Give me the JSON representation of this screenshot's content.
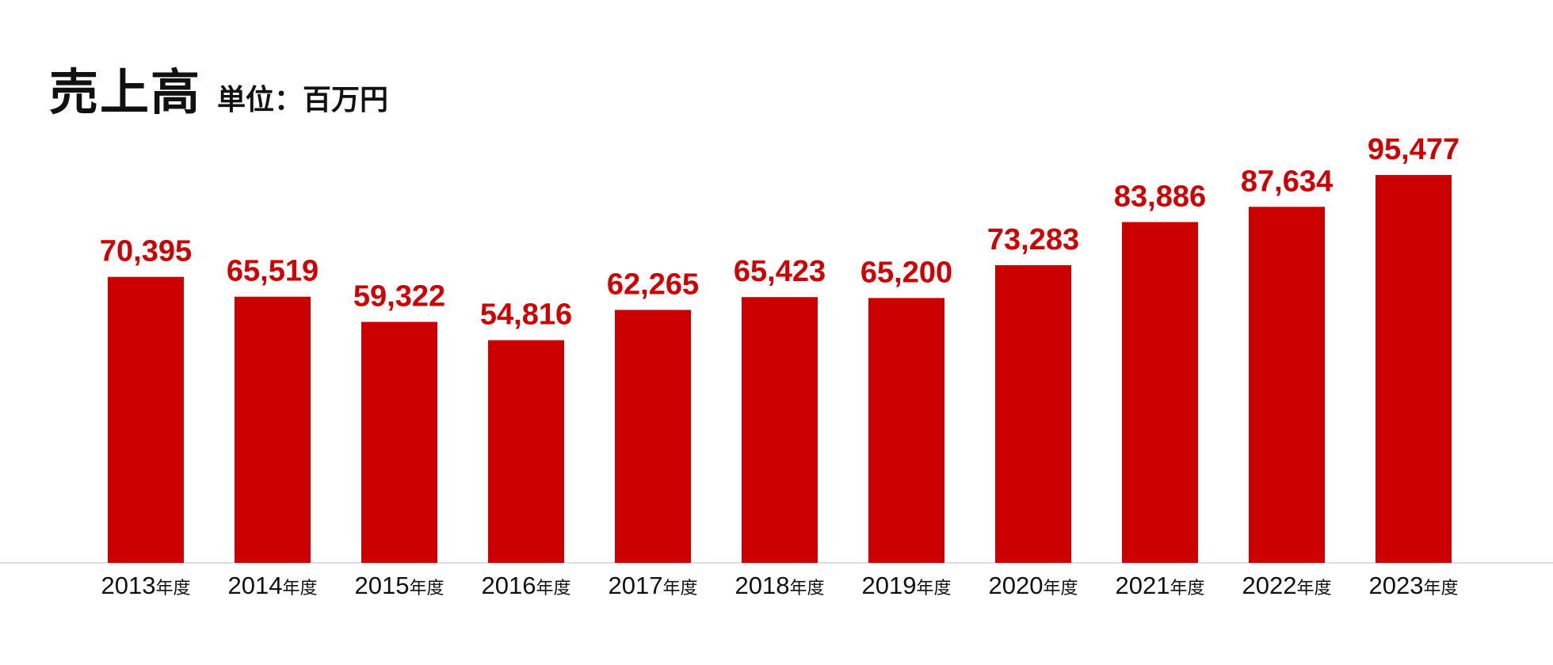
{
  "header": {
    "title": "売上高",
    "unit": "単位：百万円"
  },
  "colors": {
    "bar": "#cc0000",
    "value_label": "#cc0000",
    "axis_label": "#111111"
  },
  "chart_data": {
    "type": "bar",
    "title": "売上高",
    "subtitle": "単位：百万円",
    "category_suffix": "年度",
    "categories": [
      "2013",
      "2014",
      "2015",
      "2016",
      "2017",
      "2018",
      "2019",
      "2020",
      "2021",
      "2022",
      "2023"
    ],
    "values": [
      70395,
      65519,
      59322,
      54816,
      62265,
      65423,
      65200,
      73283,
      83886,
      87634,
      95477
    ],
    "value_labels": [
      "70,395",
      "65,519",
      "59,322",
      "54,816",
      "62,265",
      "65,423",
      "65,200",
      "73,283",
      "83,886",
      "87,634",
      "95,477"
    ],
    "ylim": [
      0,
      100000
    ],
    "grid": false,
    "legend": "none"
  }
}
